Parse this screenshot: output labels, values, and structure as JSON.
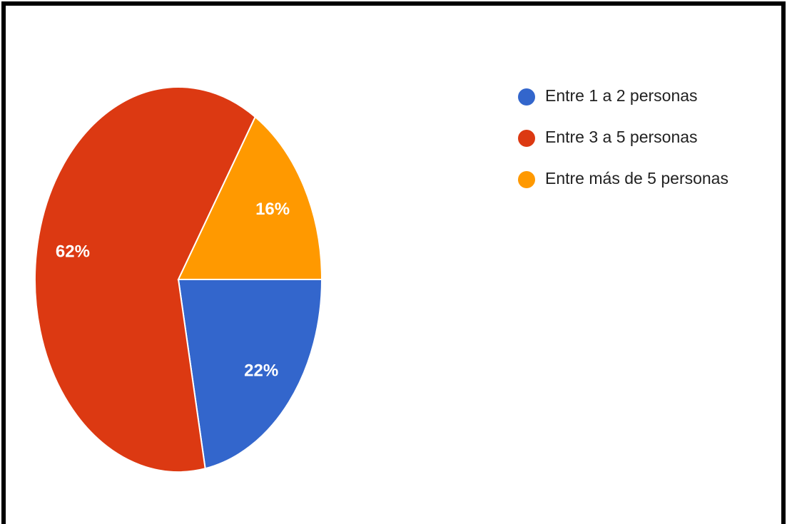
{
  "chart_data": {
    "type": "pie",
    "categories": [
      "Entre 1 a 2 personas",
      "Entre 3 a 5 personas",
      "Entre más de 5 personas"
    ],
    "values": [
      22,
      62,
      16
    ],
    "value_labels": [
      "22%",
      "62%",
      "16%"
    ],
    "colors": [
      "#3366cc",
      "#dc3912",
      "#ff9900"
    ],
    "legend": "right"
  }
}
